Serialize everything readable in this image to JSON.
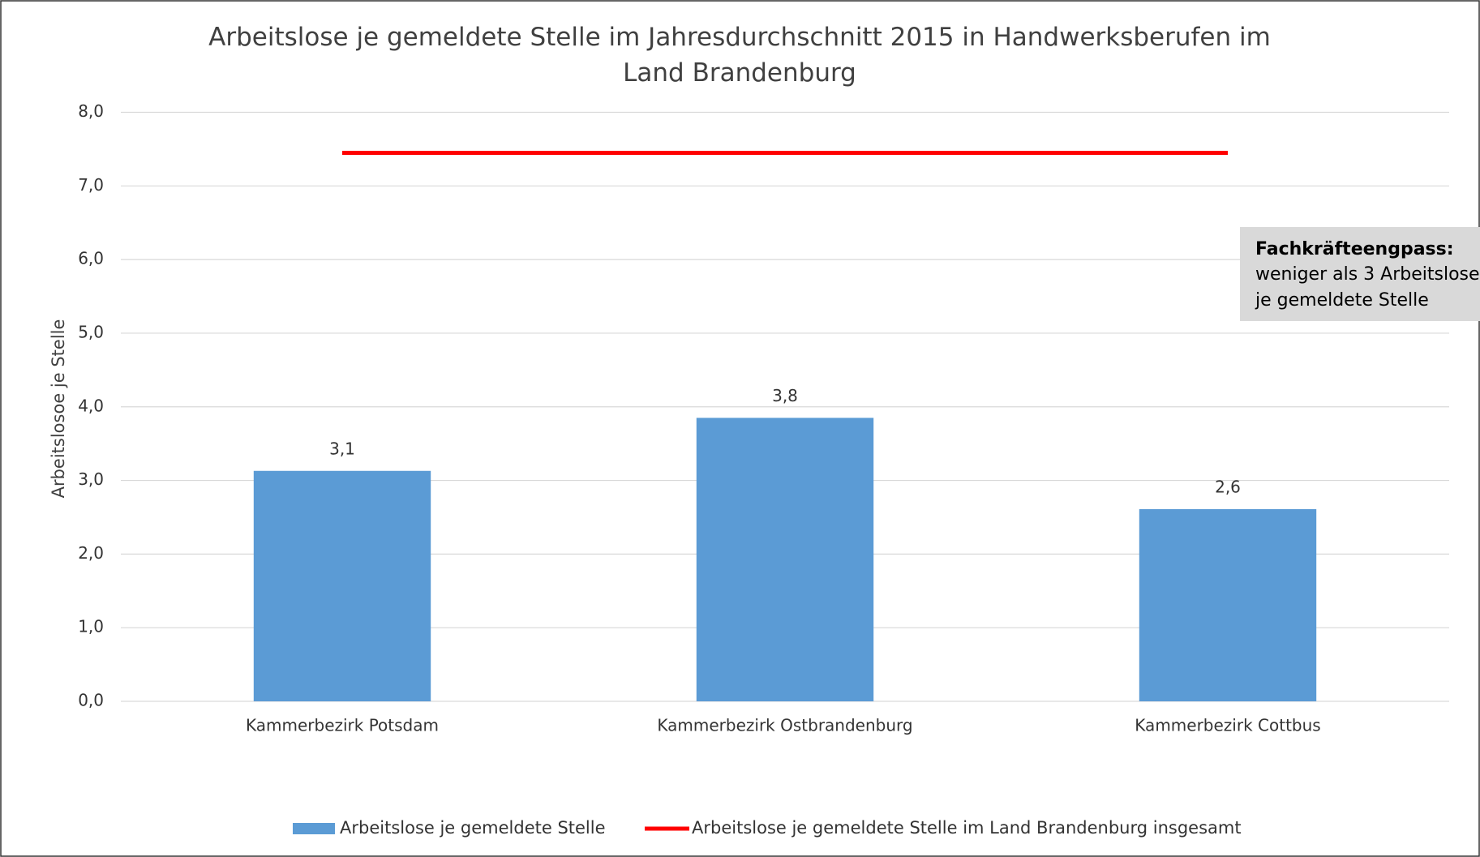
{
  "chart_data": {
    "type": "bar",
    "title": "Arbeitslose je gemeldete Stelle im Jahresdurchschnitt 2015 in Handwerksberufen im Land Brandenburg",
    "y_label": "Arbeitslosoe je Stelle",
    "categories": [
      "Kammerbezirk Potsdam",
      "Kammerbezirk Ostbrandenburg",
      "Kammerbezirk Cottbus"
    ],
    "series": [
      {
        "name": "Arbeitslose je gemeldete Stelle",
        "type": "bar",
        "color": "#5b9bd5",
        "values": [
          3.13,
          3.85,
          2.61
        ],
        "value_labels": [
          "3,1",
          "3,8",
          "2,6"
        ]
      },
      {
        "name": "Arbeitslose je gemeldete Stelle im Land Brandenburg insgesamt",
        "type": "line",
        "color": "#ff0000",
        "values": [
          7.45,
          7.45,
          7.45
        ]
      }
    ],
    "ylim": [
      0,
      8
    ],
    "yticks": [
      {
        "value": 0,
        "label": "0,0"
      },
      {
        "value": 1,
        "label": "1,0"
      },
      {
        "value": 2,
        "label": "2,0"
      },
      {
        "value": 3,
        "label": "3,0"
      },
      {
        "value": 4,
        "label": "4,0"
      },
      {
        "value": 5,
        "label": "5,0"
      },
      {
        "value": 6,
        "label": "6,0"
      },
      {
        "value": 7,
        "label": "7,0"
      },
      {
        "value": 8,
        "label": "8,0"
      }
    ],
    "grid": true,
    "legend": "bottom",
    "annotation": {
      "heading": "Fachkräfteengpass:",
      "lines": [
        "weniger als 3 Arbeitslose",
        "je gemeldete Stelle"
      ]
    }
  }
}
